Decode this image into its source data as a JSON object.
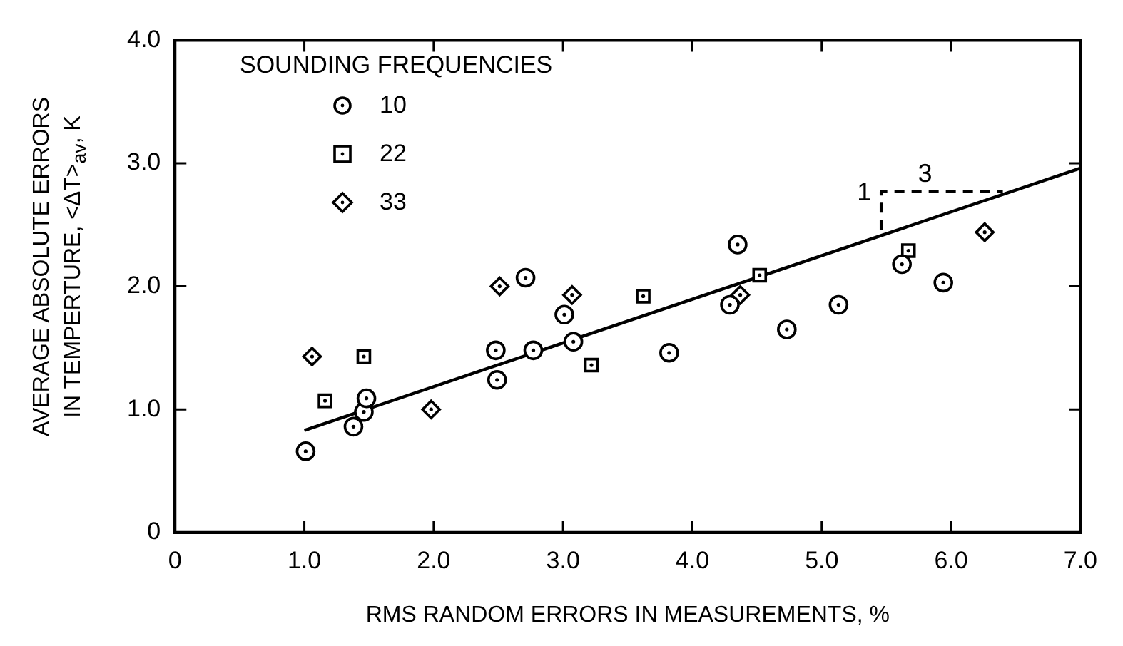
{
  "chart_data": {
    "type": "scatter",
    "xlabel": "RMS RANDOM ERRORS IN MEASUREMENTS, %",
    "ylabel": "AVERAGE ABSOLUTE ERRORS\nIN TEMPERTURE, <ΔT>$_{av}$, K",
    "legend_title": "SOUNDING FREQUENCIES",
    "legend": "top left",
    "grid": false,
    "xlim": [
      0,
      7
    ],
    "ylim": [
      0,
      4
    ],
    "xticks": [
      0,
      {
        "value": 1,
        "label": "1.0"
      },
      {
        "value": 2,
        "label": "2.0"
      },
      {
        "value": 3,
        "label": "3.0"
      },
      {
        "value": 4,
        "label": "4.0"
      },
      {
        "value": 5,
        "label": "5.0"
      },
      {
        "value": 6,
        "label": "6.0"
      },
      {
        "value": 7,
        "label": "7.0"
      }
    ],
    "yticks": [
      0,
      {
        "value": 1,
        "label": "1.0"
      },
      {
        "value": 2,
        "label": "2.0"
      },
      {
        "value": 3,
        "label": "3.0"
      },
      {
        "value": 4,
        "label": "4.0"
      }
    ],
    "series": [
      {
        "name": "10",
        "marker": "circle",
        "color": "#000000",
        "x": [
          1.01,
          1.38,
          1.46,
          1.48,
          2.48,
          2.49,
          2.71,
          2.77,
          3.01,
          3.08,
          3.82,
          4.35,
          4.29,
          4.73,
          5.13,
          5.62,
          5.94
        ],
        "values": [
          0.66,
          0.86,
          0.98,
          1.09,
          1.48,
          1.24,
          2.07,
          1.48,
          1.77,
          1.55,
          1.46,
          2.34,
          1.85,
          1.65,
          1.85,
          2.18,
          2.03
        ]
      },
      {
        "name": "22",
        "marker": "square",
        "color": "#000000",
        "x": [
          1.16,
          1.46,
          3.22,
          3.62,
          4.52,
          5.67
        ],
        "values": [
          1.07,
          1.43,
          1.36,
          1.92,
          2.09,
          2.29
        ]
      },
      {
        "name": "33",
        "marker": "diamond",
        "color": "#000000",
        "x": [
          1.06,
          1.98,
          2.51,
          3.07,
          4.37,
          6.26
        ],
        "values": [
          1.43,
          1.0,
          2.0,
          1.93,
          1.93,
          2.44
        ]
      },
      {
        "type": "line",
        "marker": "none",
        "line_style": "solid",
        "color": "#000000",
        "x": [
          1.0,
          7.0
        ],
        "values": [
          0.83,
          2.96
        ]
      },
      {
        "type": "line",
        "marker": "none",
        "line_style": "dashed",
        "color": "#000000",
        "x": [
          5.46,
          5.46,
          6.4
        ],
        "values": [
          2.46,
          2.77,
          2.77
        ]
      }
    ],
    "annotations": [
      {
        "text": "1",
        "x": 5.46,
        "y": 2.615
      },
      {
        "text": "3",
        "x": 5.93,
        "y": 2.77
      }
    ]
  }
}
